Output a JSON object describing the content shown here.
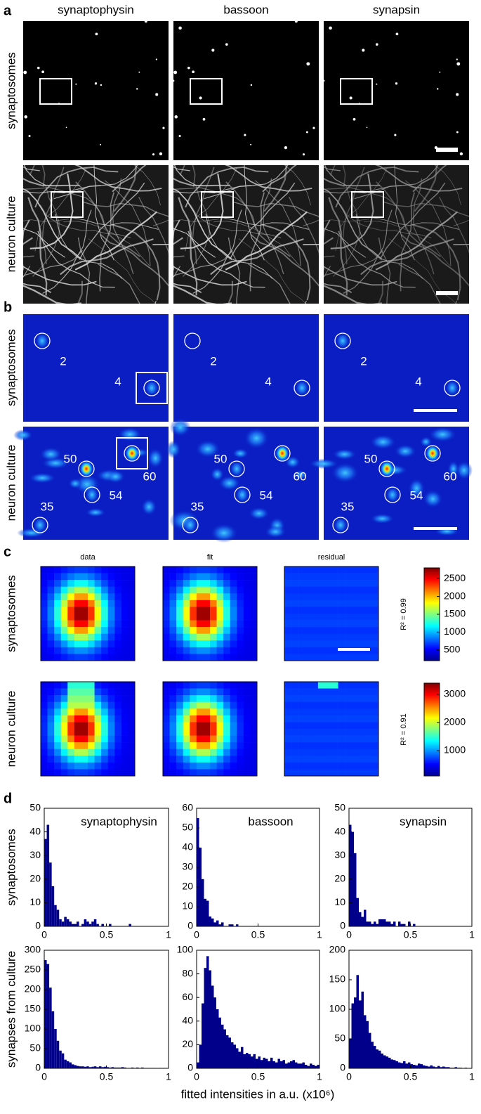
{
  "panel_labels": [
    "a",
    "b",
    "c",
    "d"
  ],
  "columns": [
    "synaptophysin",
    "bassoon",
    "synapsin"
  ],
  "rows": [
    "synaptosomes",
    "neuron culture"
  ],
  "panel_b": {
    "synaptosome_spots": [
      "2",
      "4"
    ],
    "culture_spots": [
      "50",
      "60",
      "54",
      "35"
    ]
  },
  "panel_c": {
    "columns": [
      "data",
      "fit",
      "residual"
    ],
    "r_squared": [
      "R² = 0.99",
      "R² = 0.91"
    ],
    "colorbars": [
      {
        "lim": [
          200,
          2800
        ],
        "ticks": [
          500,
          1000,
          1500,
          2000,
          2500
        ]
      },
      {
        "lim": [
          100,
          3400
        ],
        "ticks": [
          1000,
          2000,
          3000
        ]
      }
    ]
  },
  "panel_d": {
    "ylabels": [
      "synaptosomes",
      "synapses from culture"
    ],
    "xlabel": "fitted intensities in a.u. (x10⁶)"
  },
  "chart_data": [
    {
      "type": "histogram",
      "title": "synaptophysin",
      "color": "#00008b",
      "bins": [
        0,
        0.02,
        0.04,
        0.06,
        0.08,
        0.1,
        0.12,
        0.14,
        0.16,
        0.18,
        0.2,
        0.22,
        0.24,
        0.26,
        0.28,
        0.3,
        0.32,
        0.34,
        0.36,
        0.38,
        0.4,
        0.42,
        0.44,
        0.46,
        0.48,
        0.5,
        0.52,
        0.54,
        0.56,
        0.58,
        0.6,
        0.62,
        0.64,
        0.66,
        0.68,
        0.7,
        0.72,
        0.74,
        0.76,
        0.78,
        0.8,
        0.82,
        0.84,
        0.86,
        0.88,
        0.9,
        0.92,
        0.94,
        0.96,
        0.98,
        1
      ],
      "values": [
        37,
        43,
        27,
        17,
        9,
        7,
        3,
        2,
        4,
        3,
        2,
        1,
        1,
        2,
        0,
        1,
        3,
        2,
        1,
        2,
        3,
        1,
        0,
        1,
        0,
        0,
        1,
        0,
        0,
        0,
        0,
        0,
        0,
        0,
        1,
        0,
        0,
        0,
        0,
        0,
        0,
        0,
        0,
        0,
        0,
        0,
        0,
        0,
        0,
        0
      ],
      "xlim": [
        0,
        1
      ],
      "ylim": [
        0,
        50
      ],
      "xticks": [
        0,
        0.5,
        1
      ],
      "yticks": [
        0,
        10,
        20,
        30,
        40,
        50
      ]
    },
    {
      "type": "histogram",
      "title": "bassoon",
      "color": "#00008b",
      "bins": [
        0,
        0.02,
        0.04,
        0.06,
        0.08,
        0.1,
        0.12,
        0.14,
        0.16,
        0.18,
        0.2,
        0.22,
        0.24,
        0.26,
        0.28,
        0.3,
        0.32,
        0.34,
        0.36,
        0.38,
        0.4,
        0.42,
        0.44,
        0.46,
        0.48,
        0.5,
        0.52,
        0.54,
        0.56,
        0.58,
        0.6,
        0.62,
        0.64,
        0.66,
        0.68,
        0.7,
        0.72,
        0.74,
        0.76,
        0.78,
        0.8,
        0.82,
        0.84,
        0.86,
        0.88,
        0.9,
        0.92,
        0.94,
        0.96,
        0.98,
        1
      ],
      "values": [
        55,
        40,
        24,
        14,
        13,
        5,
        4,
        2,
        3,
        1,
        2,
        0,
        0,
        1,
        1,
        0,
        1,
        0,
        0,
        0,
        0,
        0,
        0,
        0,
        0,
        0,
        0,
        0,
        0,
        0,
        0,
        0,
        0,
        0,
        0,
        0,
        0,
        0,
        0,
        0,
        0,
        0,
        0,
        0,
        0,
        0,
        0,
        0,
        0,
        0
      ],
      "xlim": [
        0,
        1
      ],
      "ylim": [
        0,
        60
      ],
      "xticks": [
        0,
        0.5,
        1
      ],
      "yticks": [
        0,
        10,
        20,
        30,
        40,
        50,
        60
      ]
    },
    {
      "type": "histogram",
      "title": "synapsin",
      "color": "#00008b",
      "bins": [
        0,
        0.02,
        0.04,
        0.06,
        0.08,
        0.1,
        0.12,
        0.14,
        0.16,
        0.18,
        0.2,
        0.22,
        0.24,
        0.26,
        0.28,
        0.3,
        0.32,
        0.34,
        0.36,
        0.38,
        0.4,
        0.42,
        0.44,
        0.46,
        0.48,
        0.5,
        0.52,
        0.54,
        0.56,
        0.58,
        0.6,
        0.62,
        0.64,
        0.66,
        0.68,
        0.7,
        0.72,
        0.74,
        0.76,
        0.78,
        0.8,
        0.82,
        0.84,
        0.86,
        0.88,
        0.9,
        0.92,
        0.94,
        0.96,
        0.98,
        1
      ],
      "values": [
        43,
        40,
        31,
        12,
        6,
        4,
        7,
        2,
        2,
        1,
        2,
        1,
        3,
        3,
        3,
        2,
        2,
        1,
        2,
        0,
        2,
        1,
        1,
        0,
        2,
        0,
        1,
        0,
        0,
        0,
        0,
        0,
        0,
        0,
        0,
        0,
        0,
        0,
        0,
        0,
        0,
        0,
        0,
        0,
        0,
        0,
        0,
        0,
        0,
        0
      ],
      "xlim": [
        0,
        1
      ],
      "ylim": [
        0,
        50
      ],
      "xticks": [
        0,
        0.5,
        1
      ],
      "yticks": [
        0,
        10,
        20,
        30,
        40,
        50
      ]
    },
    {
      "type": "histogram",
      "color": "#00008b",
      "bins": [
        0,
        0.02,
        0.04,
        0.06,
        0.08,
        0.1,
        0.12,
        0.14,
        0.16,
        0.18,
        0.2,
        0.22,
        0.24,
        0.26,
        0.28,
        0.3,
        0.32,
        0.34,
        0.36,
        0.38,
        0.4,
        0.42,
        0.44,
        0.46,
        0.48,
        0.5,
        0.52,
        0.54,
        0.56,
        0.58,
        0.6,
        0.62,
        0.64,
        0.66,
        0.68,
        0.7,
        0.72,
        0.74,
        0.76,
        0.78,
        0.8,
        0.82,
        0.84,
        0.86,
        0.88,
        0.9,
        0.92,
        0.94,
        0.96,
        0.98,
        1
      ],
      "values": [
        275,
        265,
        205,
        145,
        100,
        70,
        45,
        38,
        22,
        18,
        15,
        10,
        8,
        6,
        5,
        5,
        4,
        5,
        3,
        4,
        5,
        3,
        5,
        3,
        4,
        3,
        2,
        3,
        2,
        2,
        2,
        3,
        2,
        1,
        1,
        2,
        1,
        2,
        1,
        2,
        1,
        1,
        1,
        1,
        1,
        0,
        1,
        0,
        1,
        0
      ],
      "xlim": [
        0,
        1
      ],
      "ylim": [
        0,
        300
      ],
      "xticks": [
        0,
        0.5,
        1
      ],
      "yticks": [
        0,
        50,
        100,
        150,
        200,
        250,
        300
      ]
    },
    {
      "type": "histogram",
      "color": "#00008b",
      "bins": [
        0,
        0.02,
        0.04,
        0.06,
        0.08,
        0.1,
        0.12,
        0.14,
        0.16,
        0.18,
        0.2,
        0.22,
        0.24,
        0.26,
        0.28,
        0.3,
        0.32,
        0.34,
        0.36,
        0.38,
        0.4,
        0.42,
        0.44,
        0.46,
        0.48,
        0.5,
        0.52,
        0.54,
        0.56,
        0.58,
        0.6,
        0.62,
        0.64,
        0.66,
        0.68,
        0.7,
        0.72,
        0.74,
        0.76,
        0.78,
        0.8,
        0.82,
        0.84,
        0.86,
        0.88,
        0.9,
        0.92,
        0.94,
        0.96,
        0.98,
        1
      ],
      "values": [
        5,
        20,
        55,
        85,
        95,
        83,
        70,
        60,
        50,
        43,
        37,
        33,
        28,
        26,
        22,
        20,
        17,
        14,
        18,
        12,
        13,
        12,
        10,
        12,
        8,
        10,
        7,
        9,
        8,
        6,
        9,
        6,
        5,
        8,
        6,
        7,
        4,
        5,
        6,
        7,
        5,
        4,
        4,
        5,
        3,
        2,
        4,
        3,
        2,
        3
      ],
      "xlim": [
        0,
        1
      ],
      "ylim": [
        0,
        100
      ],
      "xticks": [
        0,
        0.5,
        1
      ],
      "yticks": [
        0,
        20,
        40,
        60,
        80,
        100
      ]
    },
    {
      "type": "histogram",
      "color": "#00008b",
      "bins": [
        0,
        0.02,
        0.04,
        0.06,
        0.08,
        0.1,
        0.12,
        0.14,
        0.16,
        0.18,
        0.2,
        0.22,
        0.24,
        0.26,
        0.28,
        0.3,
        0.32,
        0.34,
        0.36,
        0.38,
        0.4,
        0.42,
        0.44,
        0.46,
        0.48,
        0.5,
        0.52,
        0.54,
        0.56,
        0.58,
        0.6,
        0.62,
        0.64,
        0.66,
        0.68,
        0.7,
        0.72,
        0.74,
        0.76,
        0.78,
        0.8,
        0.82,
        0.84,
        0.86,
        0.88,
        0.9,
        0.92,
        0.94,
        0.96,
        0.98,
        1
      ],
      "values": [
        50,
        110,
        120,
        158,
        115,
        130,
        90,
        80,
        60,
        45,
        38,
        32,
        30,
        25,
        22,
        20,
        18,
        15,
        14,
        12,
        10,
        9,
        12,
        8,
        10,
        7,
        6,
        5,
        8,
        7,
        5,
        4,
        3,
        5,
        3,
        2,
        4,
        2,
        3,
        2,
        2,
        1,
        1,
        2,
        1,
        1,
        0,
        1,
        0,
        0
      ],
      "xlim": [
        0,
        1
      ],
      "ylim": [
        0,
        200
      ],
      "xticks": [
        0,
        0.5,
        1
      ],
      "yticks": [
        0,
        50,
        100,
        150,
        200
      ]
    }
  ]
}
